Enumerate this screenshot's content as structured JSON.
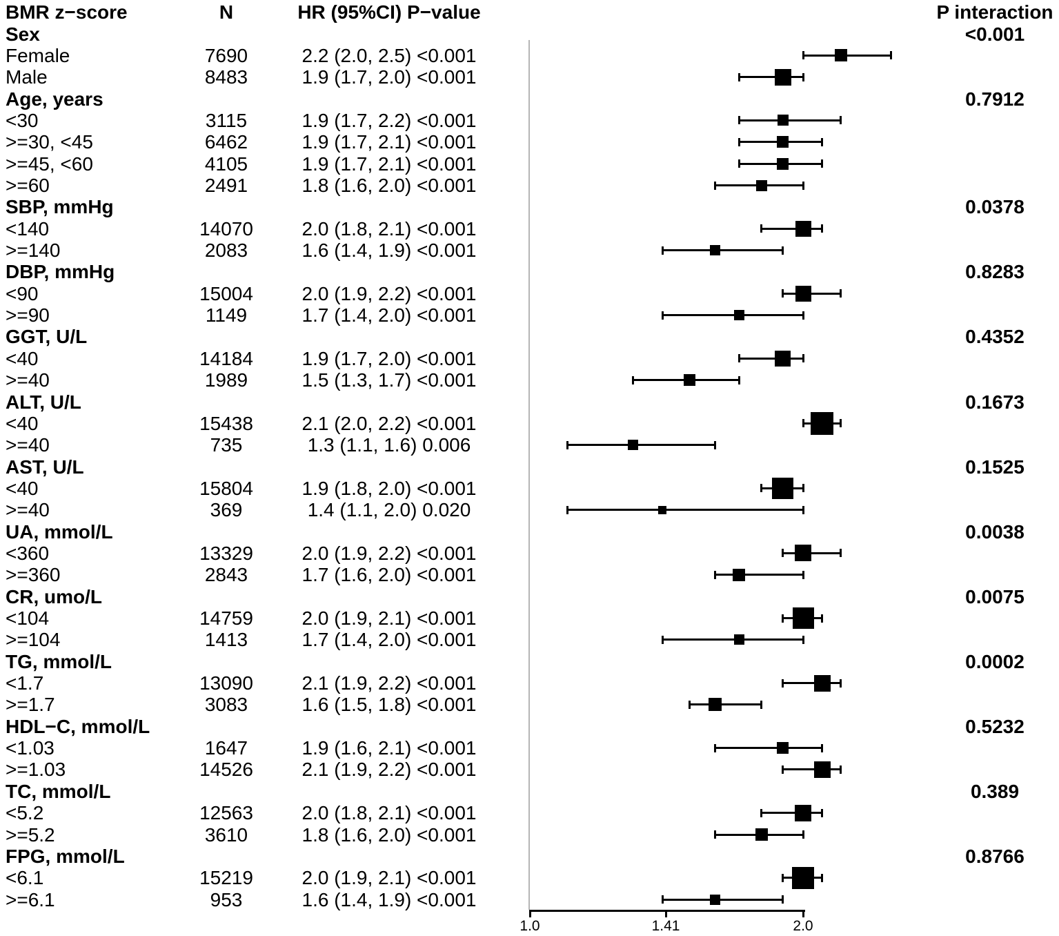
{
  "figure": {
    "columns": {
      "subgroup": "BMR z−score",
      "n": "N",
      "hr": "HR (95%CI) P−value",
      "p_interaction": "P interaction"
    },
    "colors": {
      "marker": "#000000",
      "text": "#000000",
      "ref_line": "#b5b5b5",
      "background": "#ffffff"
    }
  },
  "chart_data": {
    "type": "forest",
    "title": "",
    "x_axis": {
      "scale": "log",
      "tick_values": [
        1.0,
        1.41,
        2.0
      ],
      "tick_labels": [
        "1.0",
        "1.41",
        "2.0"
      ],
      "range": [
        1.0,
        2.0
      ],
      "reference_value": 1.0
    },
    "rows": [
      {
        "kind": "category",
        "label": "Sex",
        "p_interaction": "<0.001"
      },
      {
        "kind": "subgroup",
        "label": "Female",
        "n": "7690",
        "hr_text": "2.2 (2.0, 2.5) <0.001",
        "est": 2.2,
        "lo": 2.0,
        "hi": 2.5,
        "size": 18
      },
      {
        "kind": "subgroup",
        "label": "Male",
        "n": "8483",
        "hr_text": "1.9 (1.7, 2.0) <0.001",
        "est": 1.9,
        "lo": 1.7,
        "hi": 2.0,
        "size": 24
      },
      {
        "kind": "category",
        "label": "Age, years",
        "p_interaction": "0.7912"
      },
      {
        "kind": "subgroup",
        "label": "<30",
        "n": "3115",
        "hr_text": "1.9 (1.7, 2.2) <0.001",
        "est": 1.9,
        "lo": 1.7,
        "hi": 2.2,
        "size": 16
      },
      {
        "kind": "subgroup",
        "label": ">=30, <45",
        "n": "6462",
        "hr_text": "1.9 (1.7, 2.1) <0.001",
        "est": 1.9,
        "lo": 1.7,
        "hi": 2.1,
        "size": 17
      },
      {
        "kind": "subgroup",
        "label": ">=45, <60",
        "n": "4105",
        "hr_text": "1.9 (1.7, 2.1) <0.001",
        "est": 1.9,
        "lo": 1.7,
        "hi": 2.1,
        "size": 17
      },
      {
        "kind": "subgroup",
        "label": ">=60",
        "n": "2491",
        "hr_text": "1.8 (1.6, 2.0) <0.001",
        "est": 1.8,
        "lo": 1.6,
        "hi": 2.0,
        "size": 16
      },
      {
        "kind": "category",
        "label": "SBP, mmHg",
        "p_interaction": "0.0378"
      },
      {
        "kind": "subgroup",
        "label": "<140",
        "n": "14070",
        "hr_text": "2.0 (1.8, 2.1) <0.001",
        "est": 2.0,
        "lo": 1.8,
        "hi": 2.1,
        "size": 23
      },
      {
        "kind": "subgroup",
        "label": ">=140",
        "n": "2083",
        "hr_text": "1.6 (1.4, 1.9) <0.001",
        "est": 1.6,
        "lo": 1.4,
        "hi": 1.9,
        "size": 15
      },
      {
        "kind": "category",
        "label": "DBP, mmHg",
        "p_interaction": "0.8283"
      },
      {
        "kind": "subgroup",
        "label": "<90",
        "n": "15004",
        "hr_text": "2.0 (1.9, 2.2) <0.001",
        "est": 2.0,
        "lo": 1.9,
        "hi": 2.2,
        "size": 23
      },
      {
        "kind": "subgroup",
        "label": ">=90",
        "n": "1149",
        "hr_text": "1.7 (1.4, 2.0) <0.001",
        "est": 1.7,
        "lo": 1.4,
        "hi": 2.0,
        "size": 15
      },
      {
        "kind": "category",
        "label": "GGT, U/L",
        "p_interaction": "0.4352"
      },
      {
        "kind": "subgroup",
        "label": "<40",
        "n": "14184",
        "hr_text": "1.9 (1.7, 2.0) <0.001",
        "est": 1.9,
        "lo": 1.7,
        "hi": 2.0,
        "size": 23
      },
      {
        "kind": "subgroup",
        "label": ">=40",
        "n": "1989",
        "hr_text": "1.5 (1.3, 1.7) <0.001",
        "est": 1.5,
        "lo": 1.3,
        "hi": 1.7,
        "size": 17
      },
      {
        "kind": "category",
        "label": "ALT, U/L",
        "p_interaction": "0.1673"
      },
      {
        "kind": "subgroup",
        "label": "<40",
        "n": "15438",
        "hr_text": "2.1 (2.0, 2.2) <0.001",
        "est": 2.1,
        "lo": 2.0,
        "hi": 2.2,
        "size": 33
      },
      {
        "kind": "subgroup",
        "label": ">=40",
        "n": "735",
        "hr_text": "1.3 (1.1, 1.6) 0.006",
        "est": 1.3,
        "lo": 1.1,
        "hi": 1.6,
        "size": 15
      },
      {
        "kind": "category",
        "label": "AST, U/L",
        "p_interaction": "0.1525"
      },
      {
        "kind": "subgroup",
        "label": "<40",
        "n": "15804",
        "hr_text": "1.9 (1.8, 2.0) <0.001",
        "est": 1.9,
        "lo": 1.8,
        "hi": 2.0,
        "size": 31
      },
      {
        "kind": "subgroup",
        "label": ">=40",
        "n": "369",
        "hr_text": "1.4 (1.1, 2.0) 0.020",
        "est": 1.4,
        "lo": 1.1,
        "hi": 2.0,
        "size": 12
      },
      {
        "kind": "category",
        "label": "UA, mmol/L",
        "p_interaction": "0.0038"
      },
      {
        "kind": "subgroup",
        "label": "<360",
        "n": "13329",
        "hr_text": "2.0 (1.9, 2.2) <0.001",
        "est": 2.0,
        "lo": 1.9,
        "hi": 2.2,
        "size": 24
      },
      {
        "kind": "subgroup",
        "label": ">=360",
        "n": "2843",
        "hr_text": "1.7 (1.6, 2.0) <0.001",
        "est": 1.7,
        "lo": 1.6,
        "hi": 2.0,
        "size": 18
      },
      {
        "kind": "category",
        "label": "CR, umo/L",
        "p_interaction": "0.0075"
      },
      {
        "kind": "subgroup",
        "label": "<104",
        "n": "14759",
        "hr_text": "2.0 (1.9, 2.1) <0.001",
        "est": 2.0,
        "lo": 1.9,
        "hi": 2.1,
        "size": 31
      },
      {
        "kind": "subgroup",
        "label": ">=104",
        "n": "1413",
        "hr_text": "1.7 (1.4, 2.0) <0.001",
        "est": 1.7,
        "lo": 1.4,
        "hi": 2.0,
        "size": 15
      },
      {
        "kind": "category",
        "label": "TG, mmol/L",
        "p_interaction": "0.0002"
      },
      {
        "kind": "subgroup",
        "label": "<1.7",
        "n": "13090",
        "hr_text": "2.1 (1.9, 2.2) <0.001",
        "est": 2.1,
        "lo": 1.9,
        "hi": 2.2,
        "size": 24
      },
      {
        "kind": "subgroup",
        "label": ">=1.7",
        "n": "3083",
        "hr_text": "1.6 (1.5, 1.8) <0.001",
        "est": 1.6,
        "lo": 1.5,
        "hi": 1.8,
        "size": 19
      },
      {
        "kind": "category",
        "label": "HDL−C, mmol/L",
        "p_interaction": "0.5232"
      },
      {
        "kind": "subgroup",
        "label": "<1.03",
        "n": "1647",
        "hr_text": "1.9 (1.6, 2.1) <0.001",
        "est": 1.9,
        "lo": 1.6,
        "hi": 2.1,
        "size": 17
      },
      {
        "kind": "subgroup",
        "label": ">=1.03",
        "n": "14526",
        "hr_text": "2.1 (1.9, 2.2) <0.001",
        "est": 2.1,
        "lo": 1.9,
        "hi": 2.2,
        "size": 24
      },
      {
        "kind": "category",
        "label": "TC, mmol/L",
        "p_interaction": "0.389"
      },
      {
        "kind": "subgroup",
        "label": "<5.2",
        "n": "12563",
        "hr_text": "2.0 (1.8, 2.1) <0.001",
        "est": 2.0,
        "lo": 1.8,
        "hi": 2.1,
        "size": 24
      },
      {
        "kind": "subgroup",
        "label": ">=5.2",
        "n": "3610",
        "hr_text": "1.8 (1.6, 2.0) <0.001",
        "est": 1.8,
        "lo": 1.6,
        "hi": 2.0,
        "size": 18
      },
      {
        "kind": "category",
        "label": "FPG, mmol/L",
        "p_interaction": "0.8766"
      },
      {
        "kind": "subgroup",
        "label": "<6.1",
        "n": "15219",
        "hr_text": "2.0 (1.9, 2.1) <0.001",
        "est": 2.0,
        "lo": 1.9,
        "hi": 2.1,
        "size": 32
      },
      {
        "kind": "subgroup",
        "label": ">=6.1",
        "n": "953",
        "hr_text": "1.6 (1.4, 1.9) <0.001",
        "est": 1.6,
        "lo": 1.4,
        "hi": 1.9,
        "size": 15
      }
    ]
  }
}
